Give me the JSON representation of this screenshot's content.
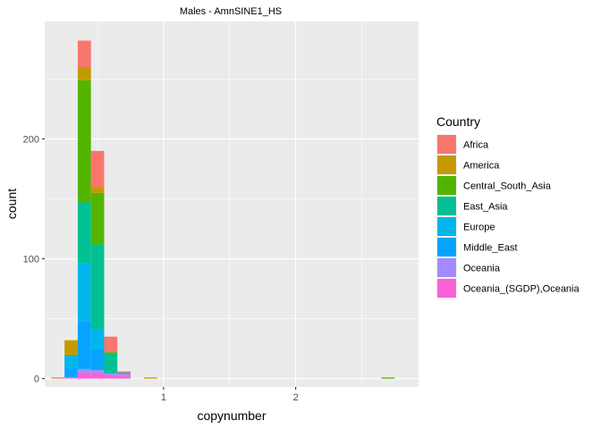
{
  "chart_data": {
    "type": "bar",
    "stacked": true,
    "title": "Males - AmnSINE1_HS",
    "xlabel": "copynumber",
    "ylabel": "count",
    "xlim": [
      0.1,
      2.93
    ],
    "ylim": [
      -7,
      298
    ],
    "x_ticks": [
      {
        "value": 1,
        "label": "1"
      },
      {
        "value": 2,
        "label": "2"
      }
    ],
    "y_ticks": [
      {
        "value": 0,
        "label": "0"
      },
      {
        "value": 100,
        "label": "100"
      },
      {
        "value": 200,
        "label": "200"
      }
    ],
    "bin_width": 0.1,
    "bin_centers": [
      0.2,
      0.3,
      0.4,
      0.5,
      0.6,
      0.7,
      0.8,
      0.9,
      1.0,
      1.1,
      1.2,
      1.3,
      1.4,
      1.5,
      1.6,
      1.7,
      1.8,
      1.9,
      2.0,
      2.1,
      2.2,
      2.3,
      2.4,
      2.5,
      2.6,
      2.7
    ],
    "legend": {
      "title": "Country",
      "position": "right"
    },
    "series": [
      {
        "name": "Africa",
        "color": "#F8766D",
        "values": [
          1,
          0,
          22,
          30,
          13,
          1,
          0,
          0,
          0,
          0,
          0,
          0,
          0,
          0,
          0,
          0,
          0,
          0,
          0,
          0,
          0,
          0,
          0,
          0,
          0,
          0
        ]
      },
      {
        "name": "America",
        "color": "#C49A00",
        "values": [
          0,
          12,
          11,
          5,
          0,
          0,
          0,
          1,
          0,
          0,
          0,
          0,
          0,
          0,
          0,
          0,
          0,
          0,
          0,
          0,
          0,
          0,
          0,
          0,
          0,
          0
        ]
      },
      {
        "name": "Central_South_Asia",
        "color": "#53B400",
        "values": [
          0,
          1,
          102,
          43,
          1,
          0,
          0,
          0,
          0,
          0,
          0,
          0,
          0,
          0,
          0,
          0,
          0,
          0,
          0,
          0,
          0,
          0,
          0,
          0,
          0,
          1
        ]
      },
      {
        "name": "East_Asia",
        "color": "#00C094",
        "values": [
          0,
          0,
          51,
          71,
          16,
          1,
          0,
          0,
          0,
          0,
          0,
          0,
          0,
          0,
          0,
          0,
          0,
          0,
          0,
          0,
          0,
          0,
          0,
          0,
          0,
          0
        ]
      },
      {
        "name": "Europe",
        "color": "#00B6EB",
        "values": [
          0,
          10,
          48,
          16,
          1,
          0,
          0,
          0,
          0,
          0,
          0,
          0,
          0,
          0,
          0,
          0,
          0,
          0,
          0,
          0,
          0,
          0,
          0,
          0,
          0,
          0
        ]
      },
      {
        "name": "Middle_East",
        "color": "#06A4FF",
        "values": [
          0,
          8,
          40,
          18,
          0,
          0,
          0,
          0,
          0,
          0,
          0,
          0,
          0,
          0,
          0,
          0,
          0,
          0,
          0,
          0,
          0,
          0,
          0,
          0,
          0,
          0
        ]
      },
      {
        "name": "Oceania",
        "color": "#A58AFF",
        "values": [
          0,
          0,
          3,
          2,
          1,
          2,
          0,
          0,
          0,
          0,
          0,
          0,
          0,
          0,
          0,
          0,
          0,
          0,
          0,
          0,
          0,
          0,
          0,
          0,
          0,
          0
        ]
      },
      {
        "name": "Oceania_(SGDP),Oceania",
        "color": "#FB61D7",
        "values": [
          0,
          1,
          5,
          5,
          3,
          2,
          0,
          0,
          0,
          0,
          0,
          0,
          0,
          0,
          0,
          0,
          0,
          0,
          0,
          0,
          0,
          0,
          0,
          0,
          0,
          0
        ]
      }
    ]
  }
}
